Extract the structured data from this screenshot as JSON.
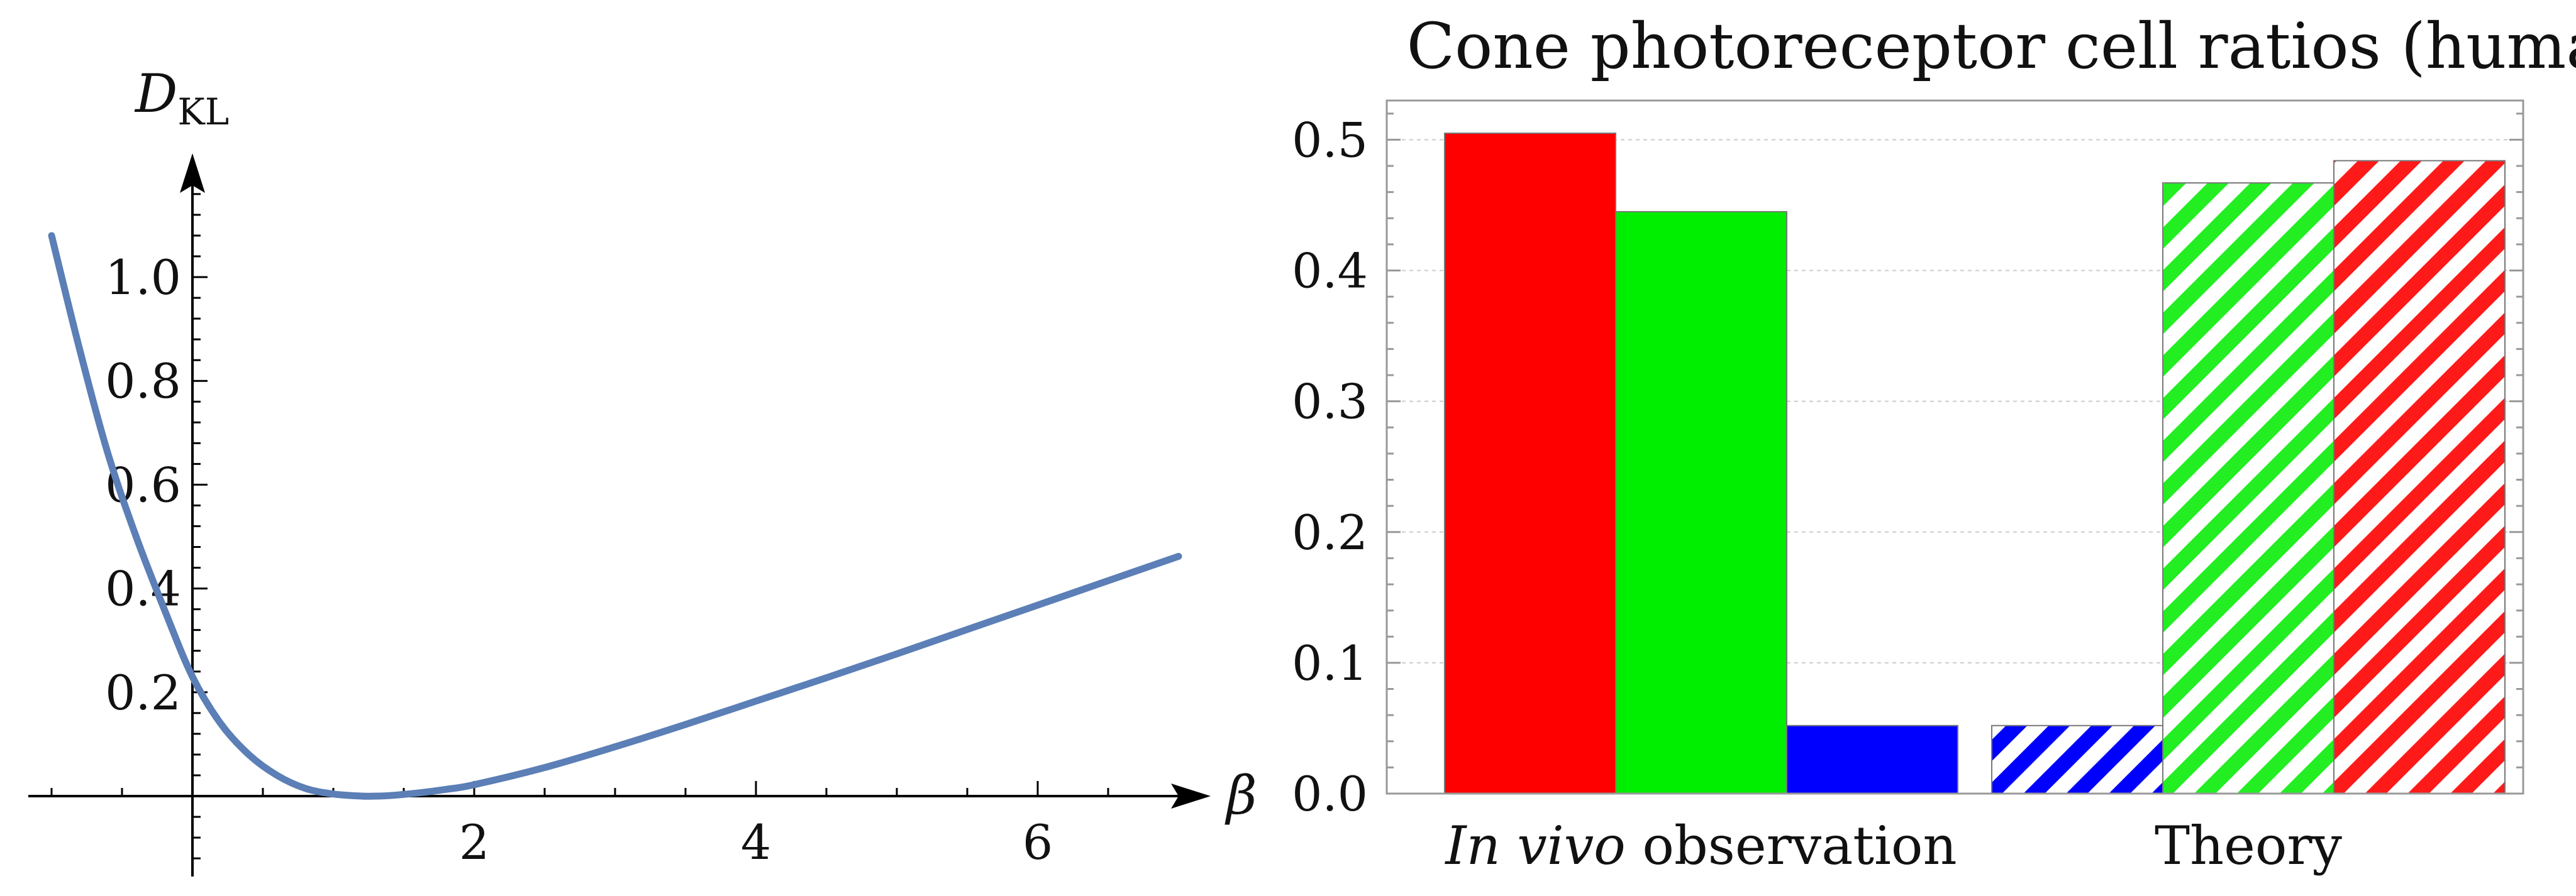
{
  "chart_data": [
    {
      "type": "line",
      "title": "",
      "xlabel": "β",
      "ylabel_main": "D",
      "ylabel_sub": "KL",
      "xlim": [
        -1.15,
        7.2
      ],
      "ylim": [
        -0.15,
        1.25
      ],
      "xticks": [
        2,
        4,
        6
      ],
      "yticks": [
        0.2,
        0.4,
        0.6,
        0.8,
        1.0
      ],
      "xtick_labels": [
        "2",
        "4",
        "6"
      ],
      "ytick_labels": [
        "0.2",
        "0.4",
        "0.6",
        "0.8",
        "1.0"
      ],
      "series": [
        {
          "name": "D_KL(β)",
          "color": "#5b7fb6",
          "x": [
            -1.0,
            -0.8,
            -0.6,
            -0.4,
            -0.2,
            0.0,
            0.2,
            0.4,
            0.6,
            0.8,
            1.0,
            1.2,
            1.3,
            1.4,
            1.6,
            1.8,
            2.0,
            2.5,
            3.0,
            3.5,
            4.0,
            4.5,
            5.0,
            5.5,
            6.0,
            6.5,
            7.0
          ],
          "y": [
            1.08,
            0.86,
            0.66,
            0.5,
            0.36,
            0.23,
            0.14,
            0.08,
            0.04,
            0.015,
            0.004,
            0.0,
            0.0,
            0.001,
            0.006,
            0.013,
            0.022,
            0.055,
            0.095,
            0.138,
            0.183,
            0.228,
            0.274,
            0.321,
            0.368,
            0.415,
            0.462
          ]
        }
      ]
    },
    {
      "type": "bar",
      "title": "Cone photoreceptor cell ratios (human)",
      "xlabel": "",
      "ylabel": "",
      "ylim": [
        0,
        0.53
      ],
      "yticks": [
        0.0,
        0.1,
        0.2,
        0.3,
        0.4,
        0.5
      ],
      "ytick_labels": [
        "0.0",
        "0.1",
        "0.2",
        "0.3",
        "0.4",
        "0.5"
      ],
      "grid": true,
      "groups": [
        {
          "label_italic": "In vivo",
          "label_rest": " observation",
          "bars": [
            {
              "name": "red cones",
              "value": 0.505,
              "color": "#ff0000",
              "pattern": "solid"
            },
            {
              "name": "green cones",
              "value": 0.445,
              "color": "#00ee00",
              "pattern": "solid"
            },
            {
              "name": "blue cones",
              "value": 0.052,
              "color": "#0000ff",
              "pattern": "solid"
            }
          ]
        },
        {
          "label_italic": "",
          "label_rest": "Theory",
          "bars": [
            {
              "name": "blue cones",
              "value": 0.052,
              "color": "#0000ff",
              "pattern": "hatched"
            },
            {
              "name": "green cones",
              "value": 0.467,
              "color": "#22ee22",
              "pattern": "hatched"
            },
            {
              "name": "red cones",
              "value": 0.484,
              "color": "#ff1a1a",
              "pattern": "hatched"
            }
          ]
        }
      ]
    }
  ]
}
